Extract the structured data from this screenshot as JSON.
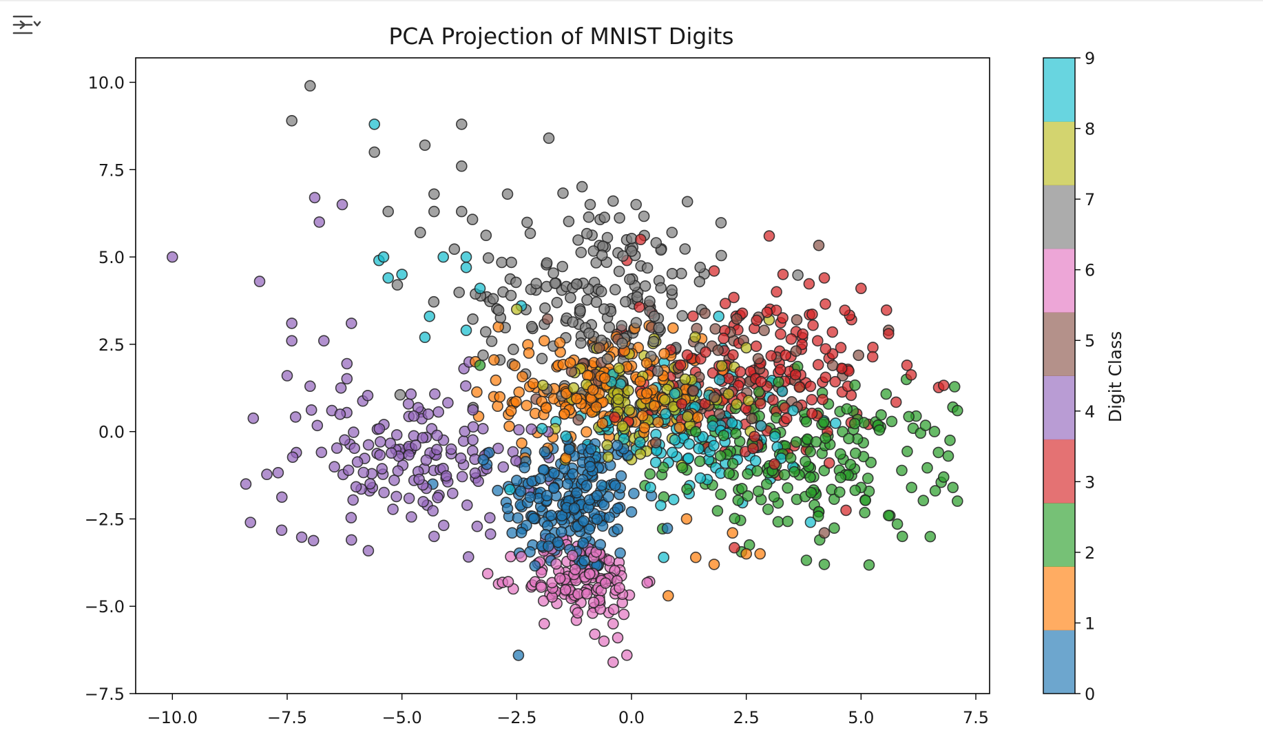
{
  "output_toggle": {
    "icon": "output-toggle-icon"
  },
  "chart_data": {
    "type": "scatter",
    "title": "PCA Projection of MNIST Digits",
    "xlabel": "",
    "ylabel": "",
    "xlim": [
      -10.8,
      7.8
    ],
    "ylim": [
      -7.5,
      10.7
    ],
    "x_ticks": [
      -10.0,
      -7.5,
      -5.0,
      -2.5,
      0.0,
      2.5,
      5.0,
      7.5
    ],
    "x_tick_labels": [
      "−10.0",
      "−7.5",
      "−5.0",
      "−2.5",
      "0.0",
      "2.5",
      "5.0",
      "7.5"
    ],
    "y_ticks": [
      -7.5,
      -5.0,
      -2.5,
      0.0,
      2.5,
      5.0,
      7.5,
      10.0
    ],
    "y_tick_labels": [
      "−7.5",
      "−5.0",
      "−2.5",
      "0.0",
      "2.5",
      "5.0",
      "7.5",
      "10.0"
    ],
    "grid": false,
    "marker": {
      "edge_color": "#222222",
      "alpha": 0.72
    },
    "colorbar": {
      "label": "Digit Class",
      "ticks": [
        "0",
        "1",
        "2",
        "3",
        "4",
        "5",
        "6",
        "7",
        "8",
        "9"
      ],
      "colors": [
        "#1f77b4",
        "#ff7f0e",
        "#2ca02c",
        "#d62728",
        "#9467bd",
        "#8c564b",
        "#e377c2",
        "#7f7f7f",
        "#bcbd22",
        "#17becf"
      ]
    },
    "series": [
      {
        "class": 0,
        "color": "#1f77b4",
        "cx": -1.3,
        "cy": -2.0,
        "sx": 0.75,
        "sy": 1.05,
        "n": 200,
        "points": [
          [
            -2.5,
            -1.4
          ],
          [
            -2.7,
            -2.2
          ],
          [
            -3.1,
            -0.6
          ],
          [
            -1.9,
            -1.1
          ],
          [
            -0.9,
            -1.0
          ],
          [
            -0.6,
            -2.1
          ],
          [
            0.0,
            -2.3
          ],
          [
            -0.3,
            -2.2
          ],
          [
            -2.6,
            -2.9
          ],
          [
            -0.8,
            -3.8
          ]
        ]
      },
      {
        "class": 1,
        "color": "#ff7f0e",
        "cx": -0.6,
        "cy": 1.1,
        "sx": 1.1,
        "sy": 0.8,
        "n": 180,
        "points": [
          [
            -2.9,
            3.0
          ],
          [
            -3.4,
            2.0
          ],
          [
            -1.9,
            2.6
          ],
          [
            1.4,
            -3.6
          ],
          [
            1.8,
            -3.8
          ],
          [
            2.5,
            -3.5
          ],
          [
            0.8,
            -4.7
          ],
          [
            2.8,
            -3.5
          ],
          [
            2.2,
            -2.9
          ],
          [
            1.2,
            -2.5
          ],
          [
            -3.0,
            1.0
          ]
        ]
      },
      {
        "class": 2,
        "color": "#2ca02c",
        "cx": 3.8,
        "cy": -0.8,
        "sx": 1.5,
        "sy": 1.05,
        "n": 190,
        "points": [
          [
            7.0,
            0.7
          ],
          [
            6.9,
            -0.7
          ],
          [
            6.6,
            0.0
          ],
          [
            7.0,
            -1.6
          ],
          [
            6.8,
            -1.3
          ],
          [
            5.9,
            -3.0
          ],
          [
            4.2,
            -3.8
          ],
          [
            4.1,
            -3.1
          ],
          [
            5.6,
            -2.4
          ],
          [
            6.1,
            -1.6
          ],
          [
            5.0,
            -1.6
          ],
          [
            -3.3,
            1.9
          ]
        ]
      },
      {
        "class": 3,
        "color": "#d62728",
        "cx": 2.9,
        "cy": 1.5,
        "sx": 1.3,
        "sy": 1.25,
        "n": 170,
        "points": [
          [
            3.0,
            5.6
          ],
          [
            0.2,
            5.5
          ],
          [
            -0.1,
            4.9
          ],
          [
            4.2,
            4.4
          ],
          [
            5.0,
            4.1
          ],
          [
            6.0,
            1.9
          ],
          [
            5.6,
            2.8
          ],
          [
            4.6,
            1.8
          ],
          [
            1.8,
            4.6
          ],
          [
            3.3,
            4.5
          ]
        ]
      },
      {
        "class": 4,
        "color": "#9467bd",
        "cx": -4.8,
        "cy": -0.7,
        "sx": 1.35,
        "sy": 1.1,
        "n": 150,
        "points": [
          [
            -10.0,
            5.0
          ],
          [
            -8.1,
            4.3
          ],
          [
            -7.4,
            3.1
          ],
          [
            -7.4,
            2.6
          ],
          [
            -6.7,
            2.6
          ],
          [
            -6.1,
            3.1
          ],
          [
            -8.4,
            -1.5
          ],
          [
            -8.3,
            -2.6
          ],
          [
            -7.3,
            -0.6
          ],
          [
            -6.9,
            6.7
          ],
          [
            -6.8,
            6.0
          ],
          [
            -6.3,
            6.5
          ],
          [
            -7.5,
            1.6
          ],
          [
            -7.0,
            1.3
          ],
          [
            -6.1,
            -3.1
          ],
          [
            -4.3,
            -3.0
          ]
        ]
      },
      {
        "class": 5,
        "color": "#8c564b",
        "cx": 1.6,
        "cy": 1.9,
        "sx": 1.5,
        "sy": 1.0,
        "n": 65,
        "points": [
          [
            5.6,
            2.9
          ],
          [
            4.2,
            -2.9
          ],
          [
            -0.7,
            2.4
          ],
          [
            3.6,
            3.2
          ],
          [
            4.6,
            1.6
          ]
        ]
      },
      {
        "class": 6,
        "color": "#e377c2",
        "cx": -1.1,
        "cy": -4.2,
        "sx": 0.65,
        "sy": 0.55,
        "n": 130,
        "points": [
          [
            -0.4,
            -6.6
          ],
          [
            -0.1,
            -6.4
          ],
          [
            -0.3,
            -5.9
          ],
          [
            -0.4,
            -5.5
          ],
          [
            -0.6,
            -6.0
          ],
          [
            -1.9,
            -5.5
          ],
          [
            -0.8,
            -5.8
          ],
          [
            -1.2,
            -5.4
          ],
          [
            -2.1,
            -4.3
          ],
          [
            -0.2,
            -4.9
          ]
        ]
      },
      {
        "class": 7,
        "color": "#7f7f7f",
        "cx": -0.7,
        "cy": 3.9,
        "sx": 1.35,
        "sy": 1.35,
        "n": 190,
        "points": [
          [
            -7.0,
            9.9
          ],
          [
            -7.4,
            8.9
          ],
          [
            -3.7,
            8.8
          ],
          [
            -4.5,
            8.2
          ],
          [
            -5.6,
            8.0
          ],
          [
            -1.8,
            8.4
          ],
          [
            -3.7,
            7.6
          ],
          [
            -4.3,
            6.8
          ],
          [
            -2.7,
            6.8
          ],
          [
            -4.3,
            6.3
          ],
          [
            -5.3,
            6.3
          ],
          [
            -3.7,
            6.3
          ],
          [
            0.1,
            6.5
          ],
          [
            -0.4,
            6.6
          ],
          [
            -0.9,
            6.5
          ],
          [
            -4.6,
            5.7
          ],
          [
            -5.1,
            4.2
          ]
        ]
      },
      {
        "class": 8,
        "color": "#bcbd22",
        "cx": 0.3,
        "cy": 0.9,
        "sx": 1.0,
        "sy": 0.7,
        "n": 110,
        "points": [
          [
            3.0,
            3.2
          ],
          [
            2.5,
            2.4
          ],
          [
            -2.5,
            3.5
          ],
          [
            0.0,
            -0.8
          ]
        ]
      },
      {
        "class": 9,
        "color": "#17becf",
        "cx": 1.2,
        "cy": 0.0,
        "sx": 1.3,
        "sy": 0.9,
        "n": 130,
        "points": [
          [
            -5.6,
            8.8
          ],
          [
            -5.4,
            5.0
          ],
          [
            -5.5,
            4.9
          ],
          [
            -4.1,
            5.0
          ],
          [
            -3.6,
            5.0
          ],
          [
            -3.6,
            4.7
          ],
          [
            -5.3,
            4.4
          ],
          [
            -5.0,
            4.5
          ],
          [
            -3.6,
            2.9
          ],
          [
            -4.5,
            2.7
          ],
          [
            -3.3,
            4.1
          ],
          [
            -4.4,
            3.3
          ],
          [
            1.9,
            3.3
          ],
          [
            -2.4,
            3.6
          ],
          [
            0.7,
            -3.6
          ]
        ]
      }
    ]
  }
}
